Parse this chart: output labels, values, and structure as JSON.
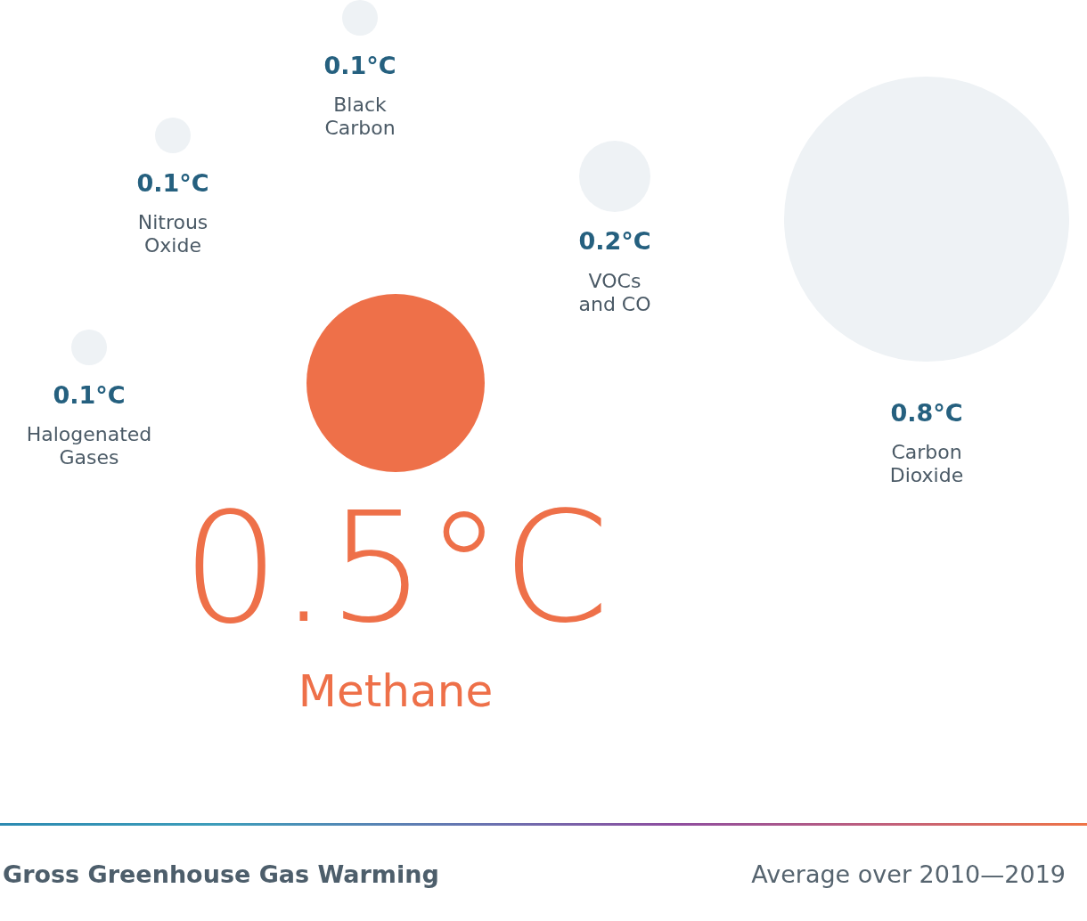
{
  "chart_data": {
    "type": "other",
    "title": "Gross Greenhouse Gas Warming",
    "subtitle": "Average over 2010—2019",
    "categories": [
      "Halogenated Gases",
      "Nitrous Oxide",
      "Black Carbon",
      "Methane",
      "VOCs and CO",
      "Carbon Dioxide"
    ],
    "values": [
      0.1,
      0.1,
      0.1,
      0.5,
      0.2,
      0.8
    ],
    "value_labels": [
      "0.1°C",
      "0.1°C",
      "0.1°C",
      "0.5°C",
      "0.2°C",
      "0.8°C"
    ],
    "colors": [
      "#eef2f5",
      "#eef2f5",
      "#eef2f5",
      "#ee7049",
      "#eef2f5",
      "#eef2f5"
    ]
  }
}
